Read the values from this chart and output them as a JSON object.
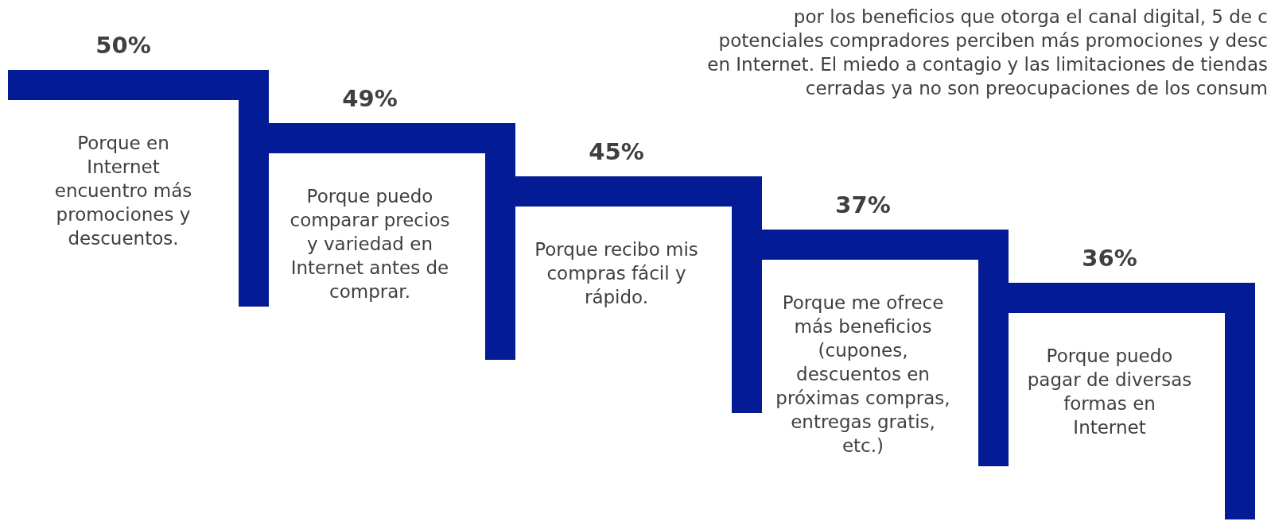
{
  "chart_data": {
    "type": "other",
    "categories": [
      "Porque en Internet encuentro más promociones y descuentos.",
      "Porque puedo comparar precios y variedad en Internet antes de comprar.",
      "Porque recibo mis compras fácil y rápido.",
      "Porque me ofrece más beneficios (cupones, descuentos en próximas compras, entregas gratis, etc.)",
      "Porque puedo pagar de diversas formas en Internet"
    ],
    "values": [
      50,
      49,
      45,
      37,
      36
    ],
    "value_labels": [
      "50%",
      "49%",
      "45%",
      "37%",
      "36%"
    ],
    "color": "#041b96",
    "annotations": [
      "por los beneficios que otorga el canal digital, 5 de c",
      "potenciales compradores perciben más promociones y desc",
      "en Internet. El miedo a contagio y las limitaciones de tiendas",
      "cerradas ya no son preocupaciones de los consum"
    ]
  }
}
